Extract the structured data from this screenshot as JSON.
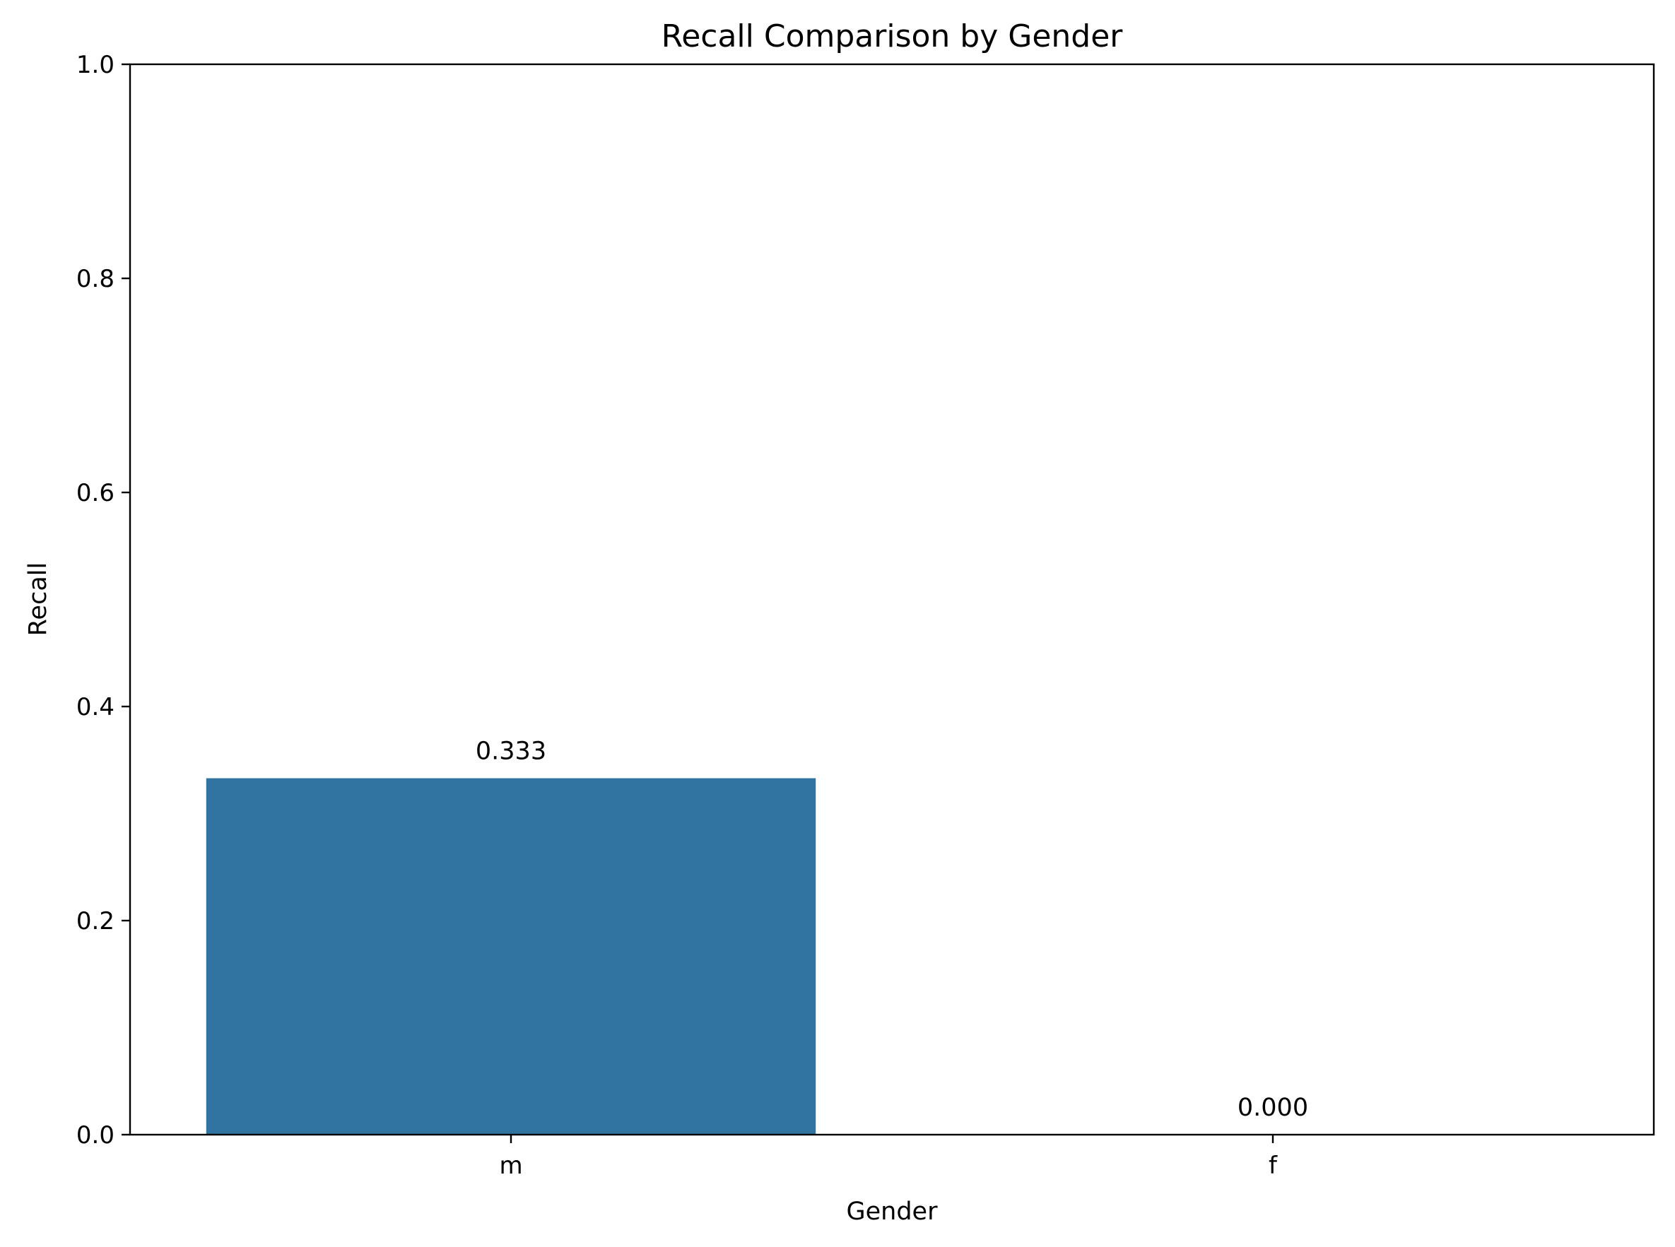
{
  "chart_data": {
    "type": "bar",
    "title": "Recall Comparison by Gender",
    "xlabel": "Gender",
    "ylabel": "Recall",
    "categories": [
      "m",
      "f"
    ],
    "values": [
      0.333,
      0.0
    ],
    "value_labels": [
      "0.333",
      "0.000"
    ],
    "ylim": [
      0,
      1.0
    ],
    "yticks": [
      0.0,
      0.2,
      0.4,
      0.6,
      0.8,
      1.0
    ],
    "ytick_labels": [
      "0.0",
      "0.2",
      "0.4",
      "0.6",
      "0.8",
      "1.0"
    ],
    "grid": false,
    "legend": "none",
    "bar_color": "#3274a1"
  }
}
